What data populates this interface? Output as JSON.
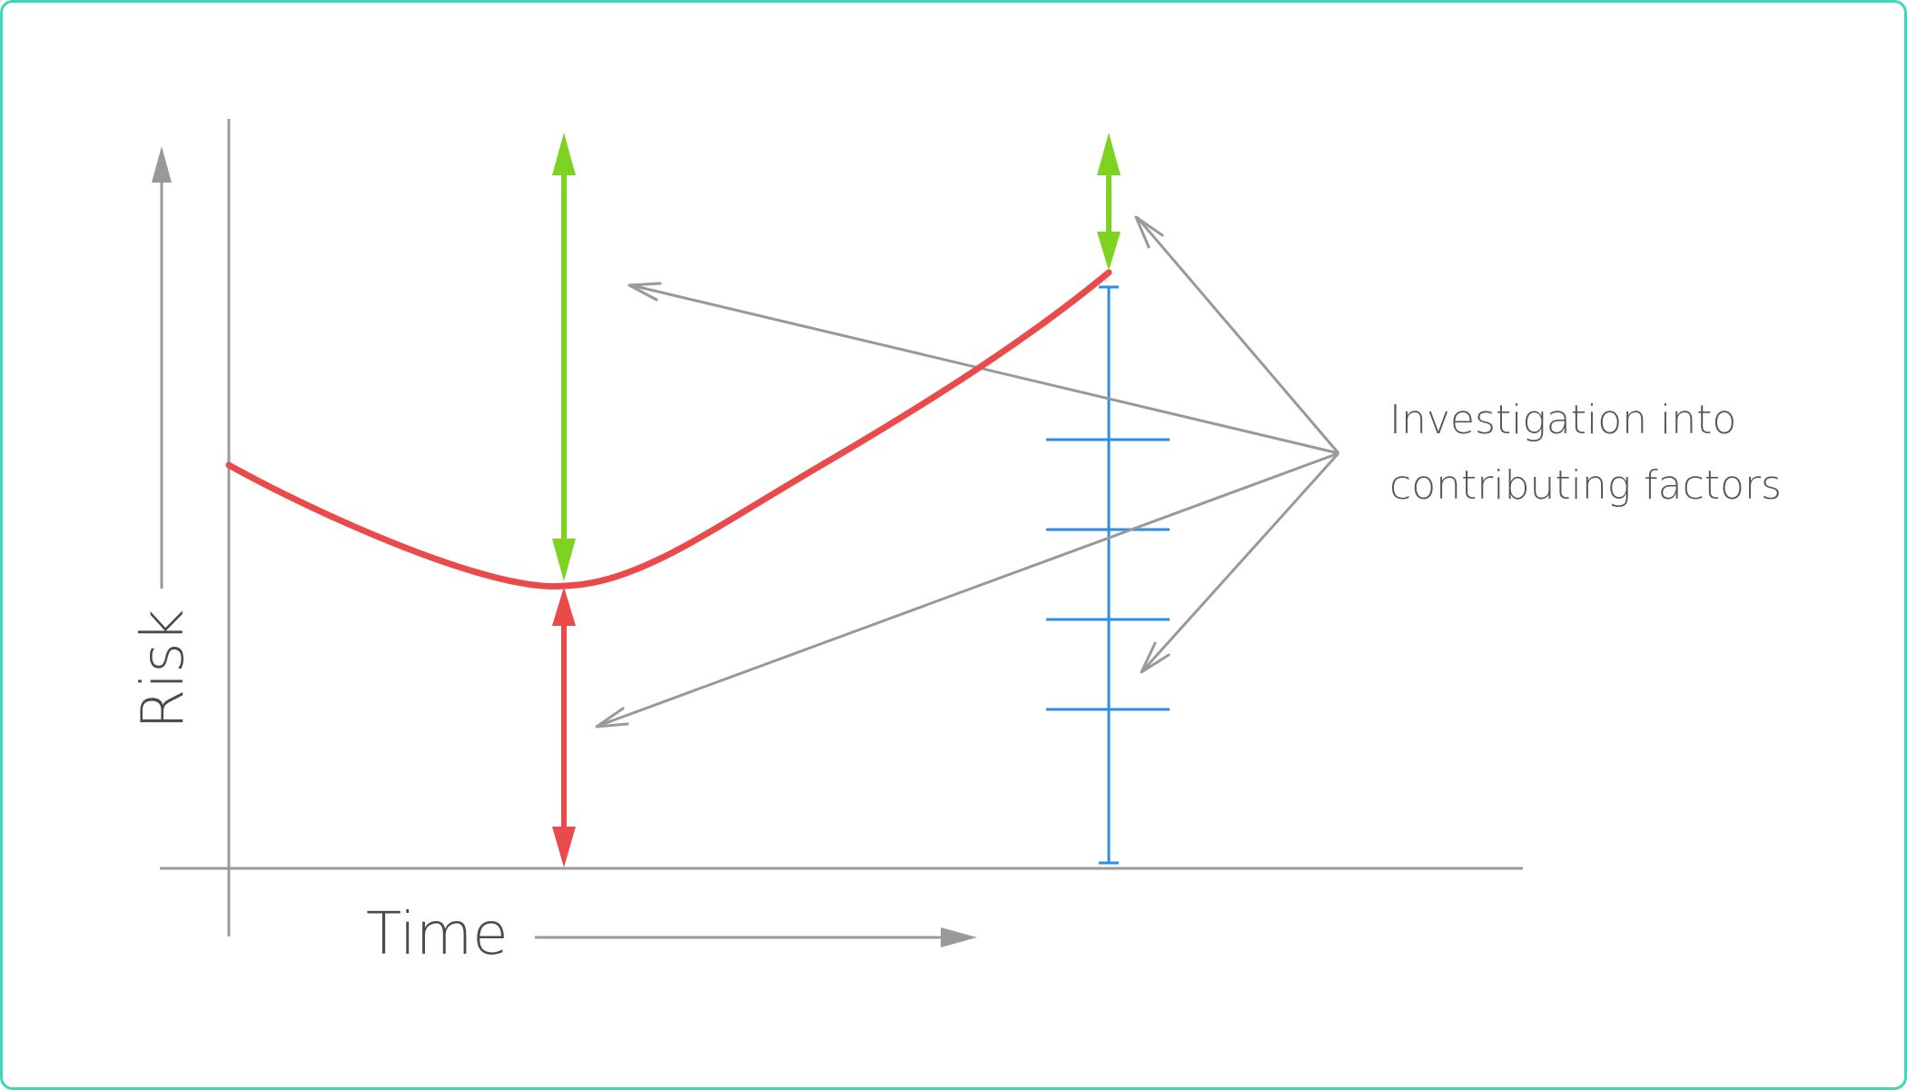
{
  "labels": {
    "y_axis": "Risk",
    "x_axis": "Time",
    "annotation_line1": "Investigation into",
    "annotation_line2": "contributing factors"
  },
  "colors": {
    "frame": "#3ed8b8",
    "axes": "#9a9a9a",
    "risk_curve": "#eb4a4a",
    "margin_arrows": "#7ed321",
    "risk_arrow": "#eb4a4a",
    "scale": "#2b8fe6",
    "annotation_arrows": "#999999"
  }
}
